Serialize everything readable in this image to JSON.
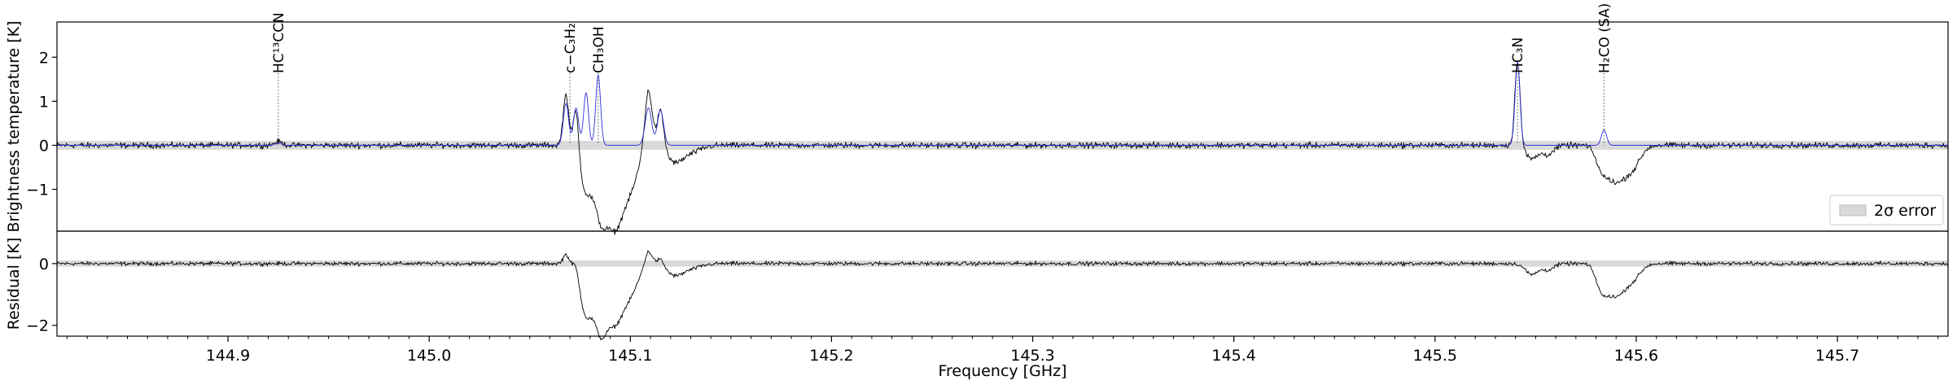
{
  "chart_data": [
    {
      "type": "line",
      "panel": "spectrum",
      "ylabel": "Brightness temperature [K]",
      "xlim": [
        144.815,
        145.755
      ],
      "ylim": [
        -1.95,
        2.8
      ],
      "yticks": [
        -1,
        0,
        1,
        2
      ],
      "ytick_labels": [
        "−1",
        "0",
        "1",
        "2"
      ],
      "grid": false,
      "legend": {
        "placement": "lower-right",
        "entries": [
          "2σ error"
        ]
      },
      "error_band": {
        "lower": -0.1,
        "upper": 0.1,
        "color": "#d9d9d9"
      },
      "series_colors": {
        "observed": "#000000",
        "model": "#2f2fe0"
      },
      "observed_features": [
        {
          "center": 144.925,
          "amplitude": 0.08,
          "width": 0.002
        },
        {
          "center": 145.068,
          "amplitude": 1.15,
          "width": 0.0014
        },
        {
          "center": 145.073,
          "amplitude": 1.0,
          "width": 0.0013
        },
        {
          "center": 145.078,
          "amplitude": -1.0,
          "width": 0.003
        },
        {
          "center": 145.085,
          "amplitude": -1.35,
          "width": 0.003
        },
        {
          "center": 145.092,
          "amplitude": -1.75,
          "width": 0.004
        },
        {
          "center": 145.1,
          "amplitude": -0.9,
          "width": 0.004
        },
        {
          "center": 145.109,
          "amplitude": 1.3,
          "width": 0.0018
        },
        {
          "center": 145.115,
          "amplitude": 0.85,
          "width": 0.0016
        },
        {
          "center": 145.122,
          "amplitude": -0.35,
          "width": 0.004
        },
        {
          "center": 145.13,
          "amplitude": -0.15,
          "width": 0.005
        },
        {
          "center": 145.541,
          "amplitude": 1.95,
          "width": 0.0013
        },
        {
          "center": 145.548,
          "amplitude": -0.3,
          "width": 0.003
        },
        {
          "center": 145.556,
          "amplitude": -0.2,
          "width": 0.003
        },
        {
          "center": 145.583,
          "amplitude": -0.5,
          "width": 0.003
        },
        {
          "center": 145.59,
          "amplitude": -0.75,
          "width": 0.004
        },
        {
          "center": 145.598,
          "amplitude": -0.5,
          "width": 0.004
        }
      ],
      "model_features": [
        {
          "center": 144.925,
          "amplitude": 0.05,
          "width": 0.0015
        },
        {
          "center": 145.068,
          "amplitude": 0.95,
          "width": 0.0013
        },
        {
          "center": 145.073,
          "amplitude": 0.85,
          "width": 0.0013
        },
        {
          "center": 145.078,
          "amplitude": 1.2,
          "width": 0.0012
        },
        {
          "center": 145.084,
          "amplitude": 1.6,
          "width": 0.0012
        },
        {
          "center": 145.109,
          "amplitude": 0.85,
          "width": 0.0016
        },
        {
          "center": 145.115,
          "amplitude": 0.8,
          "width": 0.0015
        },
        {
          "center": 145.541,
          "amplitude": 1.9,
          "width": 0.0012
        },
        {
          "center": 145.584,
          "amplitude": 0.35,
          "width": 0.0013
        }
      ],
      "noise_rms": 0.045,
      "line_labels": [
        {
          "label": "HC¹³CCN",
          "frequency": 144.925
        },
        {
          "label": "c−C₃H₂",
          "frequency": 145.07
        },
        {
          "label": "CH₃OH",
          "frequency": 145.084
        },
        {
          "label": "HC₃N",
          "frequency": 145.541
        },
        {
          "label": "H₂CO (SA)",
          "frequency": 145.584
        }
      ]
    },
    {
      "type": "line",
      "panel": "residual",
      "xlabel": "Frequency [GHz]",
      "ylabel": "Residual [K]",
      "xlim": [
        144.815,
        145.755
      ],
      "ylim": [
        -2.35,
        1.05
      ],
      "yticks": [
        -2,
        0
      ],
      "ytick_labels": [
        "−2",
        "0"
      ],
      "xticks": [
        144.9,
        145.0,
        145.1,
        145.2,
        145.3,
        145.4,
        145.5,
        145.6,
        145.7
      ],
      "xtick_labels": [
        "144.9",
        "145.0",
        "145.1",
        "145.2",
        "145.3",
        "145.4",
        "145.5",
        "145.6",
        "145.7"
      ],
      "error_band": {
        "lower": -0.1,
        "upper": 0.1,
        "color": "#d9d9d9"
      },
      "residual_features": [
        {
          "center": 145.068,
          "amplitude": 0.3,
          "width": 0.0014
        },
        {
          "center": 145.073,
          "amplitude": 0.25,
          "width": 0.0013
        },
        {
          "center": 145.078,
          "amplitude": -1.6,
          "width": 0.003
        },
        {
          "center": 145.085,
          "amplitude": -1.9,
          "width": 0.003
        },
        {
          "center": 145.092,
          "amplitude": -1.8,
          "width": 0.004
        },
        {
          "center": 145.1,
          "amplitude": -0.9,
          "width": 0.004
        },
        {
          "center": 145.109,
          "amplitude": 0.45,
          "width": 0.0018
        },
        {
          "center": 145.115,
          "amplitude": 0.2,
          "width": 0.0016
        },
        {
          "center": 145.122,
          "amplitude": -0.35,
          "width": 0.004
        },
        {
          "center": 145.13,
          "amplitude": -0.15,
          "width": 0.005
        },
        {
          "center": 145.548,
          "amplitude": -0.35,
          "width": 0.003
        },
        {
          "center": 145.556,
          "amplitude": -0.2,
          "width": 0.003
        },
        {
          "center": 145.583,
          "amplitude": -0.8,
          "width": 0.003
        },
        {
          "center": 145.59,
          "amplitude": -0.95,
          "width": 0.004
        },
        {
          "center": 145.598,
          "amplitude": -0.5,
          "width": 0.004
        }
      ],
      "noise_rms": 0.045
    }
  ]
}
